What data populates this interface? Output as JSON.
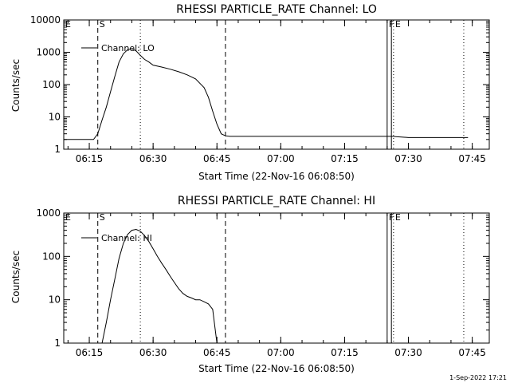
{
  "footer": {
    "timestamp": "1-Sep-2022 17:21"
  },
  "chart_data": [
    {
      "type": "line",
      "title": "RHESSI PARTICLE_RATE Channel: LO",
      "xlabel": "Start Time (22-Nov-16 06:08:50)",
      "ylabel": "Counts/sec",
      "yscale": "log",
      "xlim": [
        "06:09",
        "07:49"
      ],
      "ylim": [
        1,
        10000
      ],
      "x_ticks": [
        "06:15",
        "06:30",
        "06:45",
        "07:00",
        "07:15",
        "07:30",
        "07:45"
      ],
      "y_ticks": [
        "1",
        "10",
        "100",
        "1000",
        "10000"
      ],
      "legend": {
        "position": "top-left",
        "entry": "Channel: LO"
      },
      "markers": [
        {
          "label": "E",
          "time": "06:09",
          "style": "dashed"
        },
        {
          "label": "S",
          "time": "06:17",
          "style": "dashed"
        },
        {
          "label": "",
          "time": "06:27",
          "style": "dotted"
        },
        {
          "label": "",
          "time": "06:47",
          "style": "dashed"
        },
        {
          "label": "F",
          "time": "07:25",
          "style": "solid"
        },
        {
          "label": "",
          "time": "07:26",
          "style": "solid"
        },
        {
          "label": "E",
          "time": "07:26.5",
          "style": "dotted"
        },
        {
          "label": "",
          "time": "07:43",
          "style": "dotted"
        }
      ],
      "series": [
        {
          "x": [
            "06:09",
            "06:10",
            "06:11",
            "06:12",
            "06:13",
            "06:14",
            "06:15",
            "06:16",
            "06:17",
            "06:18",
            "06:19",
            "06:20",
            "06:21",
            "06:22",
            "06:23",
            "06:24",
            "06:25",
            "06:26",
            "06:27",
            "06:28",
            "06:29",
            "06:30",
            "06:32",
            "06:34",
            "06:36",
            "06:38",
            "06:40",
            "06:42",
            "06:43",
            "06:44",
            "06:45",
            "06:46",
            "06:47",
            "06:48",
            "06:50",
            "06:52",
            "06:54",
            "06:56",
            "06:58",
            "07:00",
            "07:02",
            "07:04",
            "07:06",
            "07:08",
            "07:10",
            "07:12",
            "07:14",
            "07:16",
            "07:18",
            "07:20",
            "07:22",
            "07:24",
            "07:26",
            "07:28",
            "07:30",
            "07:32",
            "07:34",
            "07:36",
            "07:38",
            "07:40",
            "07:42",
            "07:44"
          ],
          "y": [
            2,
            2,
            2,
            2,
            2,
            2,
            2,
            2,
            3,
            8,
            20,
            60,
            180,
            500,
            900,
            1200,
            1300,
            1100,
            800,
            600,
            500,
            400,
            350,
            300,
            250,
            200,
            150,
            80,
            40,
            15,
            6,
            3,
            2.6,
            2.5,
            2.5,
            2.5,
            2.5,
            2.5,
            2.5,
            2.5,
            2.5,
            2.5,
            2.5,
            2.5,
            2.5,
            2.5,
            2.5,
            2.5,
            2.5,
            2.5,
            2.5,
            2.5,
            2.5,
            2.4,
            2.3,
            2.3,
            2.3,
            2.3,
            2.3,
            2.3,
            2.3,
            2.3
          ]
        }
      ]
    },
    {
      "type": "line",
      "title": "RHESSI PARTICLE_RATE Channel: HI",
      "xlabel": "Start Time (22-Nov-16 06:08:50)",
      "ylabel": "Counts/sec",
      "yscale": "log",
      "xlim": [
        "06:09",
        "07:49"
      ],
      "ylim": [
        1,
        1000
      ],
      "x_ticks": [
        "06:15",
        "06:30",
        "06:45",
        "07:00",
        "07:15",
        "07:30",
        "07:45"
      ],
      "y_ticks": [
        "1",
        "10",
        "100",
        "1000"
      ],
      "legend": {
        "position": "top-left",
        "entry": "Channel: HI"
      },
      "markers": [
        {
          "label": "E",
          "time": "06:09",
          "style": "dashed"
        },
        {
          "label": "S",
          "time": "06:17",
          "style": "dashed"
        },
        {
          "label": "",
          "time": "06:27",
          "style": "dotted"
        },
        {
          "label": "",
          "time": "06:47",
          "style": "dashed"
        },
        {
          "label": "F",
          "time": "07:25",
          "style": "solid"
        },
        {
          "label": "",
          "time": "07:26",
          "style": "solid"
        },
        {
          "label": "E",
          "time": "07:26.5",
          "style": "dotted"
        },
        {
          "label": "",
          "time": "07:43",
          "style": "dotted"
        }
      ],
      "series": [
        {
          "x": [
            "06:18",
            "06:19",
            "06:20",
            "06:21",
            "06:22",
            "06:23",
            "06:24",
            "06:25",
            "06:26",
            "06:27",
            "06:28",
            "06:29",
            "06:30",
            "06:31",
            "06:32",
            "06:33",
            "06:34",
            "06:35",
            "06:36",
            "06:37",
            "06:38",
            "06:39",
            "06:40",
            "06:41",
            "06:42",
            "06:43",
            "06:44",
            "06:45"
          ],
          "y": [
            1,
            3,
            10,
            30,
            90,
            200,
            320,
            400,
            420,
            380,
            300,
            220,
            150,
            100,
            70,
            50,
            35,
            25,
            18,
            14,
            12,
            11,
            10,
            10,
            9,
            8,
            6,
            1
          ]
        }
      ]
    }
  ]
}
